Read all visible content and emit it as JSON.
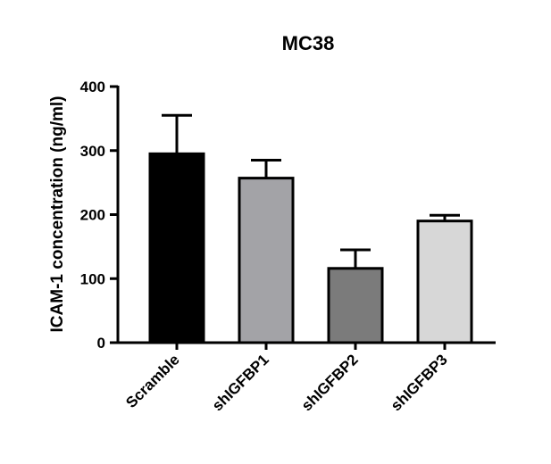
{
  "chart_data": {
    "type": "bar",
    "title": "MC38",
    "xlabel": "",
    "ylabel": "ICAM-1 concentration (ng/ml)",
    "ylim": [
      0,
      400
    ],
    "yticks": [
      0,
      100,
      200,
      300,
      400
    ],
    "categories": [
      "Scramble",
      "shIGFBP1",
      "shIGFBP2",
      "shIGFBP3"
    ],
    "values": [
      295,
      257,
      116,
      190
    ],
    "error_upper": [
      60,
      28,
      29,
      9
    ],
    "bar_colors": [
      "#000000",
      "#a3a3a7",
      "#7b7b7b",
      "#d7d7d7"
    ],
    "grid": false,
    "legend": "none"
  }
}
